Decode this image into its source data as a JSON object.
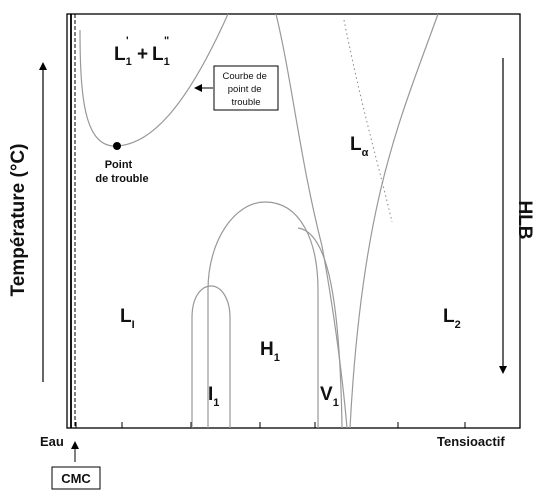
{
  "diagram": {
    "y_axis_title": "Température (°C)",
    "right_axis_title": "HLB",
    "x_axis_left_label": "Eau",
    "x_axis_right_label": "Tensioactif",
    "cmc_label": "CMC",
    "cloud_point_label_line1": "Point",
    "cloud_point_label_line2": "de trouble",
    "cloud_curve_label_line1": "Courbe de",
    "cloud_curve_label_line2": "point de",
    "cloud_curve_label_line3": "trouble",
    "phases": {
      "l1_prime_main": "L",
      "l1_prime_sub": "1",
      "l1_prime_sup": "'",
      "plus": "+",
      "l1_dprime_main": "L",
      "l1_dprime_sub": "1",
      "l1_dprime_sup": "\"",
      "l_alpha_main": "L",
      "l_alpha_sub": "α",
      "l1_main": "L",
      "l1_sub": "I",
      "l2_main": "L",
      "l2_sub": "2",
      "h1_main": "H",
      "h1_sub": "1",
      "i1_main": "I",
      "i1_sub": "1",
      "v1_main": "V",
      "v1_sub": "1"
    }
  }
}
